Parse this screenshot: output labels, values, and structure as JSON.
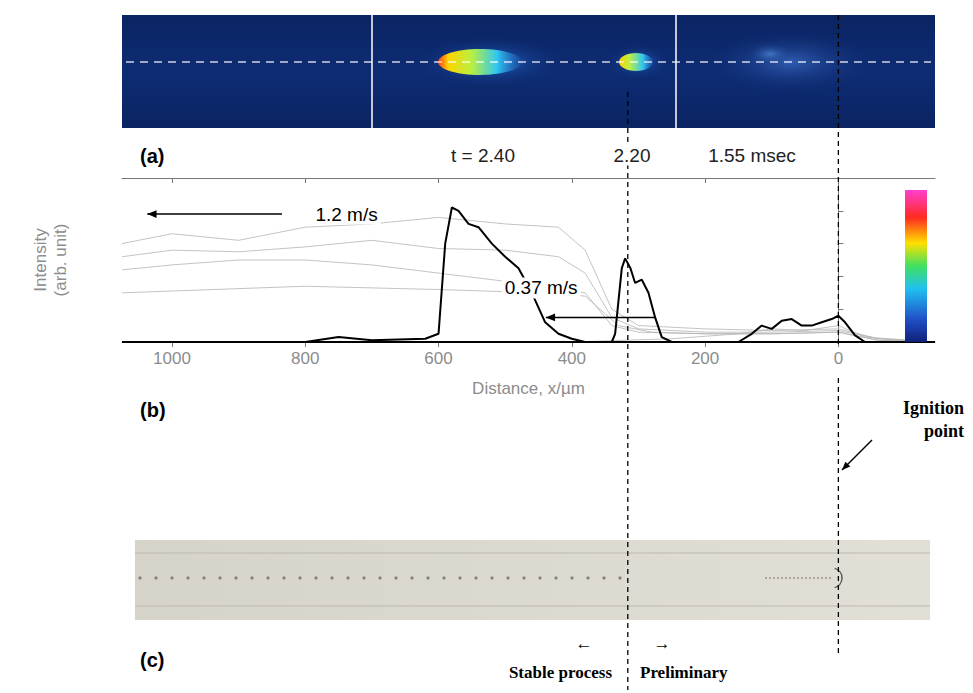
{
  "panels": {
    "a": {
      "letter": "(a)",
      "frame_labels": [
        "t = 2.40",
        "2.20",
        "1.55 msec"
      ]
    },
    "c": {
      "letter": "(c)",
      "ignition_label": "Ignition point",
      "left_label": "Stable process",
      "right_label": "Preliminary",
      "left_arrow": "←",
      "right_arrow": "→"
    }
  },
  "chart_data": {
    "type": "line",
    "letter": "(b)",
    "x_label": "Distance, x/µm",
    "y_label": "Intensity (arb. unit)",
    "xlim": [
      1075,
      -145
    ],
    "xticks": [
      1000,
      800,
      600,
      400,
      200,
      0
    ],
    "ylim": [
      0,
      1
    ],
    "yticks": [
      0.2,
      0.4,
      0.6,
      0.8,
      1
    ],
    "tick_labels": "x",
    "grid": false,
    "series": [
      {
        "color": "#b4b4b4",
        "x": [
          1075,
          1000,
          900,
          800,
          700,
          600,
          500,
          420,
          380,
          340,
          300,
          200,
          100,
          0,
          -60,
          -145
        ],
        "values": [
          0.6,
          0.66,
          0.62,
          0.7,
          0.72,
          0.76,
          0.72,
          0.7,
          0.56,
          0.2,
          0.1,
          0.08,
          0.07,
          0.08,
          0.02,
          0
        ]
      },
      {
        "color": "#b4b4b4",
        "x": [
          1075,
          1000,
          900,
          800,
          700,
          600,
          500,
          420,
          380,
          340,
          300,
          200,
          100,
          0,
          -60,
          -145
        ],
        "values": [
          0.52,
          0.56,
          0.55,
          0.58,
          0.62,
          0.57,
          0.56,
          0.52,
          0.42,
          0.15,
          0.08,
          0.06,
          0.06,
          0.07,
          0.02,
          0
        ]
      },
      {
        "color": "#b4b4b4",
        "x": [
          1075,
          1000,
          900,
          800,
          700,
          600,
          500,
          420,
          380,
          340,
          300,
          200,
          100,
          0,
          -60,
          -145
        ],
        "values": [
          0.44,
          0.47,
          0.5,
          0.5,
          0.47,
          0.42,
          0.37,
          0.33,
          0.3,
          0.1,
          0.06,
          0.05,
          0.05,
          0.06,
          0.01,
          0
        ]
      },
      {
        "color": "#b4b4b4",
        "x": [
          1075,
          800,
          600,
          450,
          380,
          330,
          280,
          200,
          100,
          0,
          -60,
          -145
        ],
        "values": [
          0.3,
          0.34,
          0.32,
          0.3,
          0.28,
          0.1,
          0.06,
          0.05,
          0.05,
          0.06,
          0.01,
          0
        ]
      },
      {
        "color": "#b4b4b4",
        "x": [
          1075,
          400,
          250,
          150,
          100,
          50,
          0,
          -40,
          -145
        ],
        "values": [
          0,
          0,
          0.02,
          0.05,
          0.08,
          0.07,
          0.1,
          0.03,
          0
        ]
      },
      {
        "color": "#000000",
        "x": [
          1075,
          800,
          750,
          700,
          620,
          600,
          590,
          580,
          570,
          555,
          540,
          520,
          500,
          480,
          460,
          440,
          420,
          400,
          380,
          -145
        ],
        "values": [
          0,
          0,
          0.03,
          0.01,
          0.02,
          0.05,
          0.6,
          0.82,
          0.8,
          0.72,
          0.7,
          0.6,
          0.52,
          0.45,
          0.3,
          0.12,
          0.05,
          0.02,
          0,
          0
        ]
      },
      {
        "color": "#000000",
        "x": [
          1075,
          340,
          335,
          325,
          320,
          312,
          305,
          295,
          285,
          275,
          265,
          250,
          -145
        ],
        "values": [
          0,
          0,
          0.05,
          0.45,
          0.51,
          0.45,
          0.36,
          0.38,
          0.3,
          0.15,
          0.03,
          0,
          0
        ]
      },
      {
        "color": "#000000",
        "x": [
          1075,
          150,
          130,
          115,
          100,
          85,
          70,
          55,
          40,
          25,
          10,
          0,
          -10,
          -25,
          -40,
          -145
        ],
        "values": [
          0,
          0,
          0.05,
          0.1,
          0.08,
          0.13,
          0.14,
          0.1,
          0.1,
          0.12,
          0.14,
          0.16,
          0.12,
          0.04,
          0,
          0
        ]
      }
    ],
    "annotations": [
      {
        "text": "1.2 m/s",
        "x": 738,
        "y": 0.78,
        "arrow_from": 835,
        "arrow_to": 1037,
        "arrow_y": 0.78
      },
      {
        "text": "0.37 m/s",
        "x": 446,
        "y": 0.33,
        "arrow_from": 274,
        "arrow_to": 439,
        "arrow_y": 0.15
      }
    ],
    "vlines": [
      316,
      0
    ]
  }
}
